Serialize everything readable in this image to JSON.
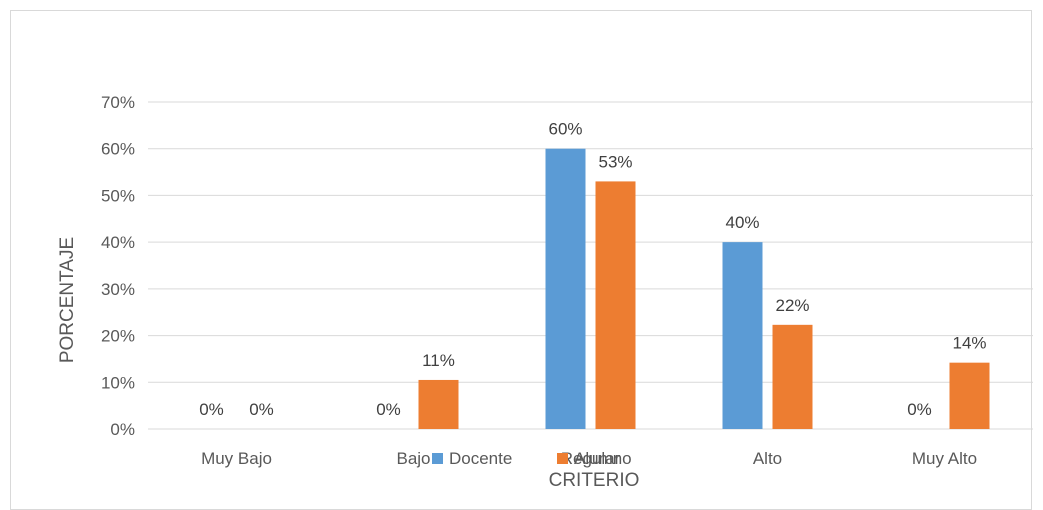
{
  "chart_data": {
    "type": "bar",
    "title": "",
    "xlabel": "CRITERIO",
    "ylabel": "PORCENTAJE",
    "categories": [
      "Muy Bajo",
      "Bajo",
      "Regular",
      "Alto",
      "Muy Alto"
    ],
    "series": [
      {
        "name": "Docente",
        "color": "#5b9bd5",
        "values": [
          0,
          0,
          60,
          40,
          0
        ],
        "labels": [
          "0%",
          "0%",
          "60%",
          "40%",
          "0%"
        ]
      },
      {
        "name": "Alumno",
        "color": "#ed7d31",
        "values": [
          0,
          10.5,
          53,
          22.3,
          14.2
        ],
        "labels": [
          "0%",
          "11%",
          "53%",
          "22%",
          "14%"
        ]
      }
    ],
    "ylim": [
      0,
      70
    ],
    "yticks": [
      "0%",
      "10%",
      "20%",
      "30%",
      "40%",
      "50%",
      "60%",
      "70%"
    ],
    "grid": true,
    "legend": "bottom"
  }
}
